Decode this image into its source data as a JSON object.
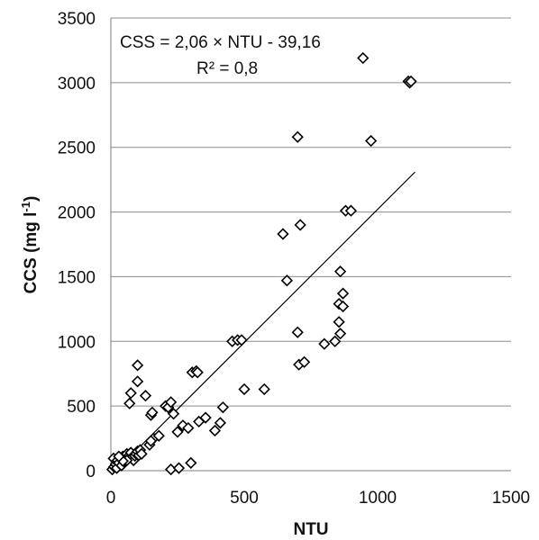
{
  "chart_data": {
    "type": "scatter",
    "title": "",
    "xlabel": "NTU",
    "ylabel_main": "CCS (mg l",
    "ylabel_sup": "-1",
    "ylabel_close": ")",
    "xlim": [
      0,
      1500
    ],
    "ylim": [
      0,
      3500
    ],
    "xticks": [
      "0",
      "500",
      "1000",
      "1500"
    ],
    "yticks": [
      "0",
      "500",
      "1000",
      "1500",
      "2000",
      "2500",
      "3000",
      "3500"
    ],
    "grid": "horizontal",
    "legend": "none",
    "annotations": {
      "equation": "CSS = 2,06 × NTU  - 39,16",
      "r2": "R² = 0,8"
    },
    "trendline": {
      "slope": 2.06,
      "intercept": -39.16,
      "x_range": [
        0,
        1140
      ]
    },
    "marker": "diamond",
    "points": [
      [
        5,
        10
      ],
      [
        12,
        30
      ],
      [
        18,
        50
      ],
      [
        22,
        20
      ],
      [
        10,
        95
      ],
      [
        25,
        80
      ],
      [
        30,
        60
      ],
      [
        35,
        100
      ],
      [
        40,
        40
      ],
      [
        45,
        110
      ],
      [
        50,
        70
      ],
      [
        55,
        90
      ],
      [
        60,
        130
      ],
      [
        65,
        100
      ],
      [
        70,
        120
      ],
      [
        75,
        140
      ],
      [
        80,
        105
      ],
      [
        85,
        80
      ],
      [
        90,
        115
      ],
      [
        95,
        130
      ],
      [
        100,
        150
      ],
      [
        105,
        120
      ],
      [
        110,
        160
      ],
      [
        115,
        130
      ],
      [
        60,
        80
      ],
      [
        45,
        75
      ],
      [
        30,
        110
      ],
      [
        70,
        520
      ],
      [
        75,
        600
      ],
      [
        100,
        690
      ],
      [
        100,
        815
      ],
      [
        130,
        580
      ],
      [
        150,
        430
      ],
      [
        155,
        450
      ],
      [
        145,
        200
      ],
      [
        160,
        250
      ],
      [
        180,
        270
      ],
      [
        150,
        230
      ],
      [
        205,
        500
      ],
      [
        215,
        490
      ],
      [
        225,
        530
      ],
      [
        235,
        440
      ],
      [
        225,
        10
      ],
      [
        255,
        20
      ],
      [
        250,
        300
      ],
      [
        270,
        350
      ],
      [
        290,
        330
      ],
      [
        300,
        60
      ],
      [
        305,
        760
      ],
      [
        320,
        770
      ],
      [
        325,
        760
      ],
      [
        330,
        380
      ],
      [
        355,
        410
      ],
      [
        390,
        310
      ],
      [
        410,
        370
      ],
      [
        420,
        490
      ],
      [
        455,
        1000
      ],
      [
        475,
        1010
      ],
      [
        490,
        1010
      ],
      [
        500,
        630
      ],
      [
        575,
        630
      ],
      [
        645,
        1830
      ],
      [
        660,
        1470
      ],
      [
        700,
        2580
      ],
      [
        700,
        1070
      ],
      [
        705,
        820
      ],
      [
        710,
        1900
      ],
      [
        725,
        840
      ],
      [
        800,
        980
      ],
      [
        840,
        1000
      ],
      [
        855,
        1150
      ],
      [
        855,
        1290
      ],
      [
        860,
        1540
      ],
      [
        860,
        1060
      ],
      [
        870,
        1370
      ],
      [
        870,
        1270
      ],
      [
        880,
        2010
      ],
      [
        900,
        2010
      ],
      [
        945,
        3190
      ],
      [
        975,
        2550
      ],
      [
        1115,
        3010
      ],
      [
        1120,
        3000
      ],
      [
        1125,
        3010
      ]
    ]
  }
}
